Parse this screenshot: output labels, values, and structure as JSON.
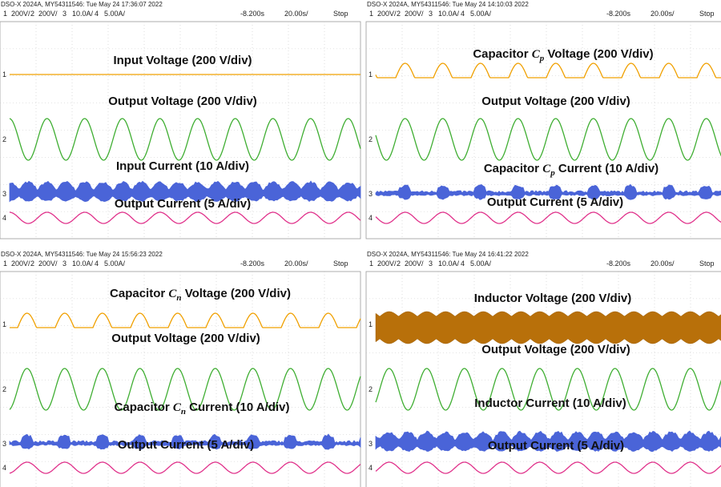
{
  "panels": [
    {
      "header": {
        "scope": "DSO-X 2024A, MY54311546: Tue May 24 17:36:07 2022",
        "channels": [
          {
            "number": "1",
            "scale": "200V/"
          },
          {
            "number": "2",
            "scale": "200V/"
          },
          {
            "number": "3",
            "scale": "10.0A/"
          },
          {
            "number": "4",
            "scale": "5.00A/"
          }
        ],
        "delay": "-8.200s",
        "timebase": "20.00s/",
        "status": "Stop"
      },
      "labels": [
        {
          "text": "Input Voltage (200 V/div)"
        },
        {
          "text": "Output Voltage (200 V/div)"
        },
        {
          "text": "Input Current (10 A/div)"
        },
        {
          "text": "Output Current (5 A/div)"
        }
      ]
    },
    {
      "header": {
        "scope": "DSO-X 2024A, MY54311546: Tue May 24 14:10:03 2022",
        "channels": [
          {
            "number": "1",
            "scale": "200V/"
          },
          {
            "number": "2",
            "scale": "200V/"
          },
          {
            "number": "3",
            "scale": "10.0A/"
          },
          {
            "number": "4",
            "scale": "5.00A/"
          }
        ],
        "delay": "-8.200s",
        "timebase": "20.00s/",
        "status": "Stop"
      },
      "labels": [
        {
          "prefix": "Capacitor ",
          "symbol": "C",
          "subscript": "p",
          "suffix": " Voltage (200 V/div)"
        },
        {
          "text": "Output Voltage (200 V/div)"
        },
        {
          "prefix": "Capacitor ",
          "symbol": "C",
          "subscript": "p",
          "suffix": " Current (10 A/div)"
        },
        {
          "text": "Output Current (5 A/div)"
        }
      ]
    },
    {
      "header": {
        "scope": "DSO-X 2024A, MY54311546: Tue May 24 15:56:23 2022",
        "channels": [
          {
            "number": "1",
            "scale": "200V/"
          },
          {
            "number": "2",
            "scale": "200V/"
          },
          {
            "number": "3",
            "scale": "10.0A/"
          },
          {
            "number": "4",
            "scale": "5.00A/"
          }
        ],
        "delay": "-8.200s",
        "timebase": "20.00s/",
        "status": "Stop"
      },
      "labels": [
        {
          "prefix": "Capacitor ",
          "symbol": "C",
          "subscript": "n",
          "suffix": " Voltage (200 V/div)"
        },
        {
          "text": "Output Voltage (200 V/div)"
        },
        {
          "prefix": "Capacitor ",
          "symbol": "C",
          "subscript": "n",
          "suffix": " Current (10 A/div)"
        },
        {
          "text": "Output Current (5 A/div)"
        }
      ]
    },
    {
      "header": {
        "scope": "DSO-X 2024A, MY54311546: Tue May 24 16:41:22 2022",
        "channels": [
          {
            "number": "1",
            "scale": "200V/"
          },
          {
            "number": "2",
            "scale": "200V/"
          },
          {
            "number": "3",
            "scale": "10.0A/"
          },
          {
            "number": "4",
            "scale": "5.00A/"
          }
        ],
        "delay": "-8.200s",
        "timebase": "20.00s/",
        "status": "Stop"
      },
      "labels": [
        {
          "text": "Inductor Voltage (200 V/div)"
        },
        {
          "text": "Output Voltage (200 V/div)"
        },
        {
          "text": "Inductor Current (10 A/div)"
        },
        {
          "text": "Output Current (5 A/div)"
        }
      ]
    }
  ]
}
